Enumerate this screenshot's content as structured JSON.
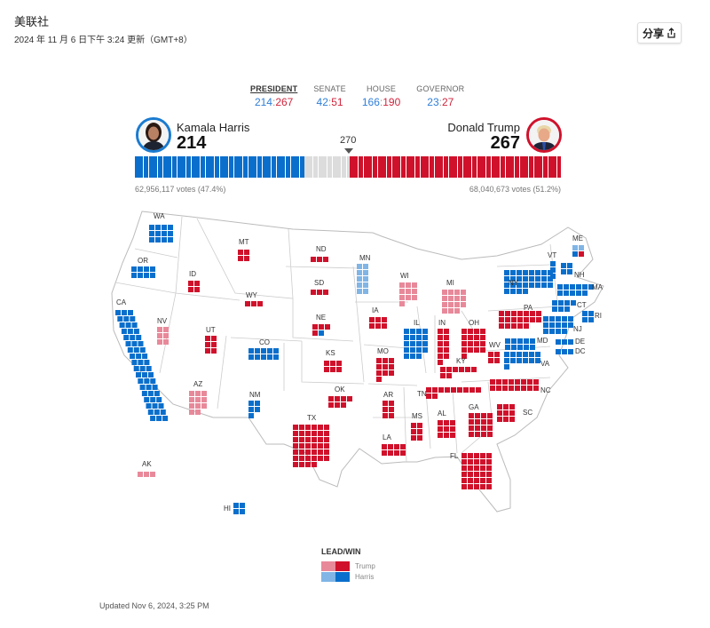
{
  "header": {
    "source": "美联社",
    "updated": "2024 年 11 月 6 日下午 3:24 更新（GMT+8）",
    "share_label": "分享",
    "share_icon": "share-icon"
  },
  "tabs": [
    {
      "label": "PRESIDENT",
      "dem": "214",
      "rep": "267",
      "active": true
    },
    {
      "label": "SENATE",
      "dem": "42",
      "rep": "51"
    },
    {
      "label": "HOUSE",
      "dem": "166",
      "rep": "190"
    },
    {
      "label": "GOVERNOR",
      "dem": "23",
      "rep": "27"
    }
  ],
  "candidates": {
    "harris": {
      "name": "Kamala Harris",
      "ev": "214",
      "votes": "62,956,117 votes (47.4%)"
    },
    "trump": {
      "name": "Donald Trump",
      "ev": "267",
      "votes": "68,040,673 votes (51.2%)"
    }
  },
  "threshold": "270",
  "totals": {
    "harris": 214,
    "uncalled": 57,
    "trump": 267
  },
  "colors": {
    "trump_win": "#d0112b",
    "trump_lead": "#e8899a",
    "harris_win": "#0a6fcc",
    "harris_lead": "#80b5e6",
    "uncalled": "#dcdcdc"
  },
  "states": [
    {
      "code": "WA",
      "segments": [
        {
          "ev": 12,
          "party": "harris",
          "status": "win"
        }
      ]
    },
    {
      "code": "OR",
      "segments": [
        {
          "ev": 8,
          "party": "harris",
          "status": "win"
        }
      ]
    },
    {
      "code": "CA",
      "segments": [
        {
          "ev": 54,
          "party": "harris",
          "status": "win"
        }
      ]
    },
    {
      "code": "NV",
      "segments": [
        {
          "ev": 6,
          "party": "trump",
          "status": "lead"
        }
      ]
    },
    {
      "code": "ID",
      "segments": [
        {
          "ev": 4,
          "party": "trump",
          "status": "win"
        }
      ]
    },
    {
      "code": "MT",
      "segments": [
        {
          "ev": 4,
          "party": "trump",
          "status": "win"
        }
      ]
    },
    {
      "code": "WY",
      "segments": [
        {
          "ev": 3,
          "party": "trump",
          "status": "win"
        }
      ]
    },
    {
      "code": "UT",
      "segments": [
        {
          "ev": 6,
          "party": "trump",
          "status": "win"
        }
      ]
    },
    {
      "code": "CO",
      "segments": [
        {
          "ev": 10,
          "party": "harris",
          "status": "win"
        }
      ]
    },
    {
      "code": "AZ",
      "segments": [
        {
          "ev": 11,
          "party": "trump",
          "status": "lead"
        }
      ]
    },
    {
      "code": "NM",
      "segments": [
        {
          "ev": 5,
          "party": "harris",
          "status": "win"
        }
      ]
    },
    {
      "code": "ND",
      "segments": [
        {
          "ev": 3,
          "party": "trump",
          "status": "win"
        }
      ]
    },
    {
      "code": "SD",
      "segments": [
        {
          "ev": 3,
          "party": "trump",
          "status": "win"
        }
      ]
    },
    {
      "code": "NE",
      "segments": [
        {
          "ev": 4,
          "party": "trump",
          "status": "win"
        },
        {
          "ev": 1,
          "party": "harris",
          "status": "win"
        }
      ]
    },
    {
      "code": "KS",
      "segments": [
        {
          "ev": 6,
          "party": "trump",
          "status": "win"
        }
      ]
    },
    {
      "code": "OK",
      "segments": [
        {
          "ev": 7,
          "party": "trump",
          "status": "win"
        }
      ]
    },
    {
      "code": "TX",
      "segments": [
        {
          "ev": 40,
          "party": "trump",
          "status": "win"
        }
      ]
    },
    {
      "code": "MN",
      "segments": [
        {
          "ev": 10,
          "party": "harris",
          "status": "lead"
        }
      ]
    },
    {
      "code": "IA",
      "segments": [
        {
          "ev": 6,
          "party": "trump",
          "status": "win"
        }
      ]
    },
    {
      "code": "MO",
      "segments": [
        {
          "ev": 10,
          "party": "trump",
          "status": "win"
        }
      ]
    },
    {
      "code": "AR",
      "segments": [
        {
          "ev": 6,
          "party": "trump",
          "status": "win"
        }
      ]
    },
    {
      "code": "LA",
      "segments": [
        {
          "ev": 8,
          "party": "trump",
          "status": "win"
        }
      ]
    },
    {
      "code": "WI",
      "segments": [
        {
          "ev": 10,
          "party": "trump",
          "status": "lead"
        }
      ]
    },
    {
      "code": "IL",
      "segments": [
        {
          "ev": 19,
          "party": "harris",
          "status": "win"
        }
      ]
    },
    {
      "code": "MI",
      "segments": [
        {
          "ev": 15,
          "party": "trump",
          "status": "lead"
        }
      ]
    },
    {
      "code": "IN",
      "segments": [
        {
          "ev": 11,
          "party": "trump",
          "status": "win"
        }
      ]
    },
    {
      "code": "OH",
      "segments": [
        {
          "ev": 17,
          "party": "trump",
          "status": "win"
        }
      ]
    },
    {
      "code": "KY",
      "segments": [
        {
          "ev": 8,
          "party": "trump",
          "status": "win"
        }
      ]
    },
    {
      "code": "TN",
      "segments": [
        {
          "ev": 11,
          "party": "trump",
          "status": "win"
        }
      ]
    },
    {
      "code": "MS",
      "segments": [
        {
          "ev": 6,
          "party": "trump",
          "status": "win"
        }
      ]
    },
    {
      "code": "AL",
      "segments": [
        {
          "ev": 9,
          "party": "trump",
          "status": "win"
        }
      ]
    },
    {
      "code": "GA",
      "segments": [
        {
          "ev": 16,
          "party": "trump",
          "status": "win"
        }
      ]
    },
    {
      "code": "FL",
      "segments": [
        {
          "ev": 30,
          "party": "trump",
          "status": "win"
        }
      ]
    },
    {
      "code": "SC",
      "segments": [
        {
          "ev": 9,
          "party": "trump",
          "status": "win"
        }
      ]
    },
    {
      "code": "NC",
      "segments": [
        {
          "ev": 16,
          "party": "trump",
          "status": "win"
        }
      ]
    },
    {
      "code": "VA",
      "segments": [
        {
          "ev": 13,
          "party": "harris",
          "status": "win"
        }
      ]
    },
    {
      "code": "WV",
      "segments": [
        {
          "ev": 4,
          "party": "trump",
          "status": "win"
        }
      ]
    },
    {
      "code": "PA",
      "segments": [
        {
          "ev": 19,
          "party": "trump",
          "status": "win"
        }
      ]
    },
    {
      "code": "NY",
      "segments": [
        {
          "ev": 28,
          "party": "harris",
          "status": "win"
        }
      ]
    },
    {
      "code": "MD",
      "segments": [
        {
          "ev": 10,
          "party": "harris",
          "status": "win"
        }
      ]
    },
    {
      "code": "NJ",
      "segments": [
        {
          "ev": 14,
          "party": "harris",
          "status": "win"
        }
      ]
    },
    {
      "code": "DE",
      "segments": [
        {
          "ev": 3,
          "party": "harris",
          "status": "win"
        }
      ]
    },
    {
      "code": "DC",
      "segments": [
        {
          "ev": 3,
          "party": "harris",
          "status": "win"
        }
      ]
    },
    {
      "code": "CT",
      "segments": [
        {
          "ev": 7,
          "party": "harris",
          "status": "win"
        }
      ]
    },
    {
      "code": "RI",
      "segments": [
        {
          "ev": 4,
          "party": "harris",
          "status": "win"
        }
      ]
    },
    {
      "code": "MA",
      "segments": [
        {
          "ev": 11,
          "party": "harris",
          "status": "win"
        }
      ]
    },
    {
      "code": "NH",
      "segments": [
        {
          "ev": 4,
          "party": "harris",
          "status": "win"
        }
      ]
    },
    {
      "code": "VT",
      "segments": [
        {
          "ev": 3,
          "party": "harris",
          "status": "win"
        }
      ]
    },
    {
      "code": "ME",
      "segments": [
        {
          "ev": 2,
          "party": "harris",
          "status": "lead"
        },
        {
          "ev": 1,
          "party": "harris",
          "status": "win"
        },
        {
          "ev": 1,
          "party": "trump",
          "status": "win"
        }
      ]
    },
    {
      "code": "AK",
      "segments": [
        {
          "ev": 3,
          "party": "trump",
          "status": "lead"
        }
      ]
    },
    {
      "code": "HI",
      "segments": [
        {
          "ev": 4,
          "party": "harris",
          "status": "win"
        }
      ]
    }
  ],
  "legend": {
    "title": "LEAD/WIN",
    "trump": "Trump",
    "harris": "Harris"
  },
  "footer": "Updated Nov 6, 2024, 3:25 PM"
}
